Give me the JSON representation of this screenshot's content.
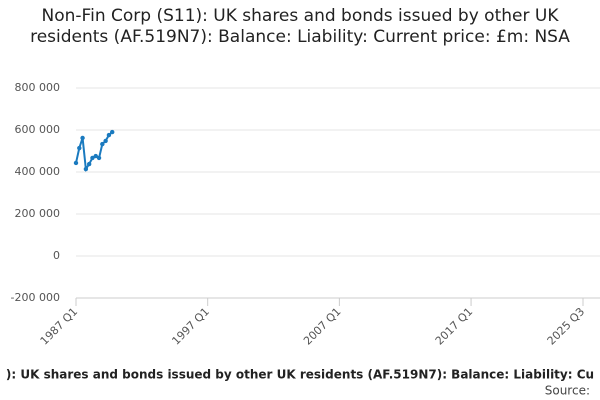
{
  "chart_data": {
    "type": "line",
    "title": "Non-Fin Corp (S11): UK shares and bonds issued by other UK residents (AF.519N7): Balance: Liability: Current price: £m: NSA",
    "x": [
      "1987 Q1",
      "1987 Q2",
      "1987 Q3",
      "1987 Q4",
      "1988 Q1",
      "1988 Q2",
      "1988 Q3",
      "1988 Q4",
      "1989 Q1",
      "1989 Q2",
      "1989 Q3",
      "1989 Q4"
    ],
    "series": [
      {
        "name": "): UK shares and bonds issued by other UK residents (AF.519N7): Balance: Liability: Cu",
        "color": "#1a7abf",
        "values": [
          443000,
          514000,
          562000,
          414000,
          438000,
          467000,
          476000,
          467000,
          533000,
          548000,
          576000,
          590000
        ]
      }
    ],
    "xlim": [
      "1987 Q1",
      "2025 Q3"
    ],
    "xticks": [
      "1987 Q1",
      "1997 Q1",
      "2007 Q1",
      "2017 Q1",
      "2025 Q3"
    ],
    "ylim": [
      -200000,
      800000
    ],
    "yticks": [
      {
        "value": -200000,
        "label": "-200 000"
      },
      0,
      {
        "value": 200000,
        "label": "200 000"
      },
      {
        "value": 400000,
        "label": "400 000"
      },
      {
        "value": 600000,
        "label": "600 000"
      },
      {
        "value": 800000,
        "label": "800 000"
      }
    ],
    "grid": true,
    "source": "Source:"
  }
}
